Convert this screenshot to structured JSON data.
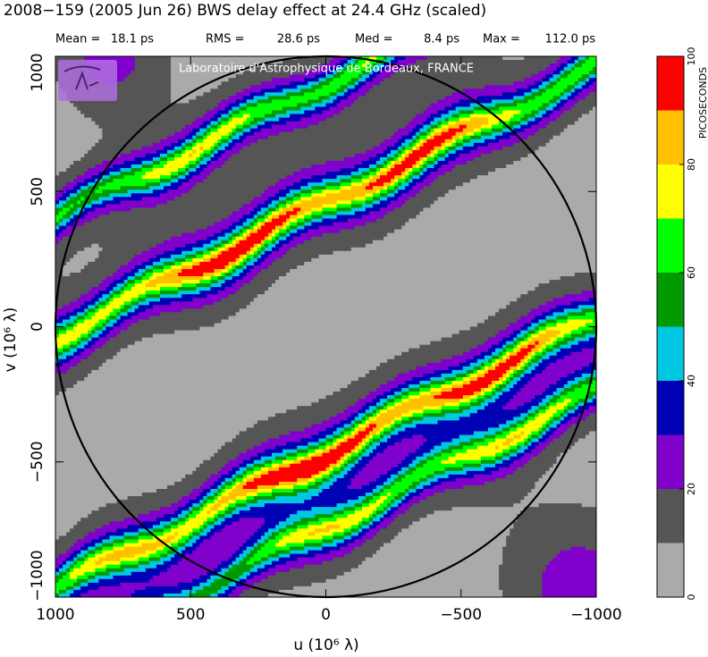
{
  "chart_data": {
    "type": "contour",
    "title": "2008−159  (2005 Jun 26)   BWS delay effect at 24.4 GHz (scaled)",
    "stats": [
      {
        "label": "Mean =",
        "value": "18.1 ps"
      },
      {
        "label": "RMS =",
        "value": "28.6 ps"
      },
      {
        "label": "Med =",
        "value": "8.4 ps"
      },
      {
        "label": "Max =",
        "value": "112.0 ps"
      }
    ],
    "annotation": "Laboratoire d'Astrophysique de Bordeaux, FRANCE",
    "x_label": "u  (10⁶ λ)",
    "y_label": "v  (10⁶ λ)",
    "xlim": [
      1000,
      -1000
    ],
    "ylim": [
      -1000,
      1000
    ],
    "xticks": [
      1000,
      500,
      0,
      {
        "value": -500,
        "label": "−500"
      },
      {
        "value": -1000,
        "label": "−1000"
      }
    ],
    "yticks": [
      {
        "value": -1000,
        "label": "−1000"
      },
      {
        "value": -500,
        "label": "−500"
      },
      0,
      500,
      1000
    ],
    "colorbar": {
      "label": "PICOSECONDS",
      "levels": [
        0,
        10,
        20,
        30,
        40,
        50,
        60,
        70,
        80,
        90,
        100
      ],
      "colors": [
        "#aaaaaa",
        "#555555",
        "#8000cc",
        "#0000b4",
        "#00c8e0",
        "#009a00",
        "#00ff00",
        "#ffff00",
        "#ffc000",
        "#ff0000"
      ],
      "ticks": [
        0,
        20,
        40,
        60,
        80,
        100
      ]
    }
  }
}
